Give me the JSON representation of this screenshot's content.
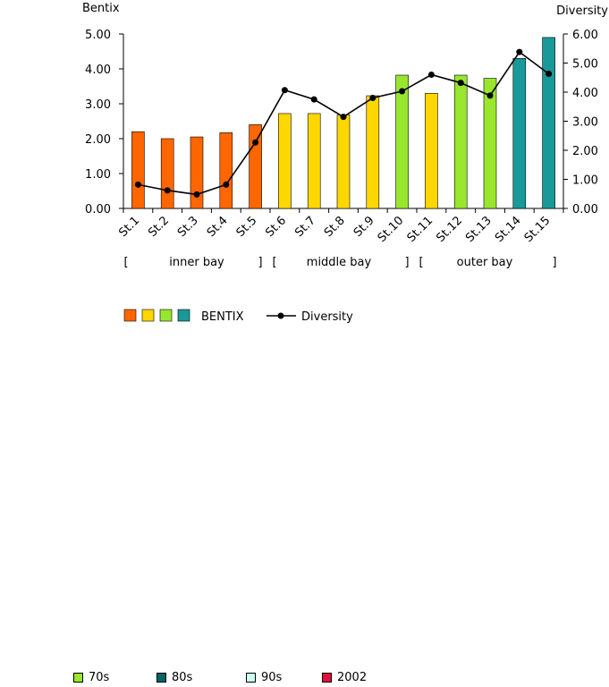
{
  "chart_data": {
    "type": "bar",
    "y_left_label": "Bentix",
    "y_right_label": "Diversity",
    "categories": [
      "St.1",
      "St.2",
      "St.3",
      "St.4",
      "St.5",
      "St.6",
      "St.7",
      "St.8",
      "St.9",
      "St.10",
      "St.11",
      "St.12",
      "St.13",
      "St.14",
      "St.15"
    ],
    "y_left_ticks": [
      "0.00",
      "1.00",
      "2.00",
      "3.00",
      "4.00",
      "5.00"
    ],
    "y_right_ticks": [
      "0.00",
      "1.00",
      "2.00",
      "3.00",
      "4.00",
      "5.00",
      "6.00"
    ],
    "y_left_lim": [
      0,
      5
    ],
    "y_right_lim": [
      0,
      6
    ],
    "series": [
      {
        "name": "BENTIX",
        "kind": "bar",
        "axis": "left",
        "values": [
          2.2,
          2.0,
          2.05,
          2.17,
          2.4,
          2.72,
          2.72,
          2.68,
          3.23,
          3.82,
          3.3,
          3.82,
          3.73,
          4.3,
          4.9
        ],
        "colors": [
          "#FF6600",
          "#FF6600",
          "#FF6600",
          "#FF6600",
          "#FF6600",
          "#FFD700",
          "#FFD700",
          "#FFD700",
          "#FFD700",
          "#99E62E",
          "#FFD700",
          "#99E62E",
          "#99E62E",
          "#1A9999",
          "#1A9999"
        ]
      },
      {
        "name": "Diversity",
        "kind": "line",
        "axis": "right",
        "values": [
          0.82,
          0.62,
          0.48,
          0.82,
          2.27,
          4.07,
          3.75,
          3.15,
          3.8,
          4.03,
          4.6,
          4.32,
          3.88,
          5.38,
          4.63
        ],
        "color": "#000000"
      }
    ],
    "groups": [
      {
        "label": "inner bay"
      },
      {
        "label": "middle bay"
      },
      {
        "label": "outer bay"
      }
    ],
    "bracket_open": "[",
    "bracket_close": "]",
    "legend": {
      "bentix_label": "BENTIX",
      "bentix_swatches": [
        "#FF6600",
        "#FFD700",
        "#99E62E",
        "#1A9999"
      ],
      "diversity_label": "Diversity"
    }
  },
  "bottom_legend": [
    {
      "label": "70s",
      "color": "#99E62E"
    },
    {
      "label": "80s",
      "color": "#006666"
    },
    {
      "label": "90s",
      "color": "#CCFFEE"
    },
    {
      "label": "2002",
      "color": "#E0103A"
    }
  ]
}
